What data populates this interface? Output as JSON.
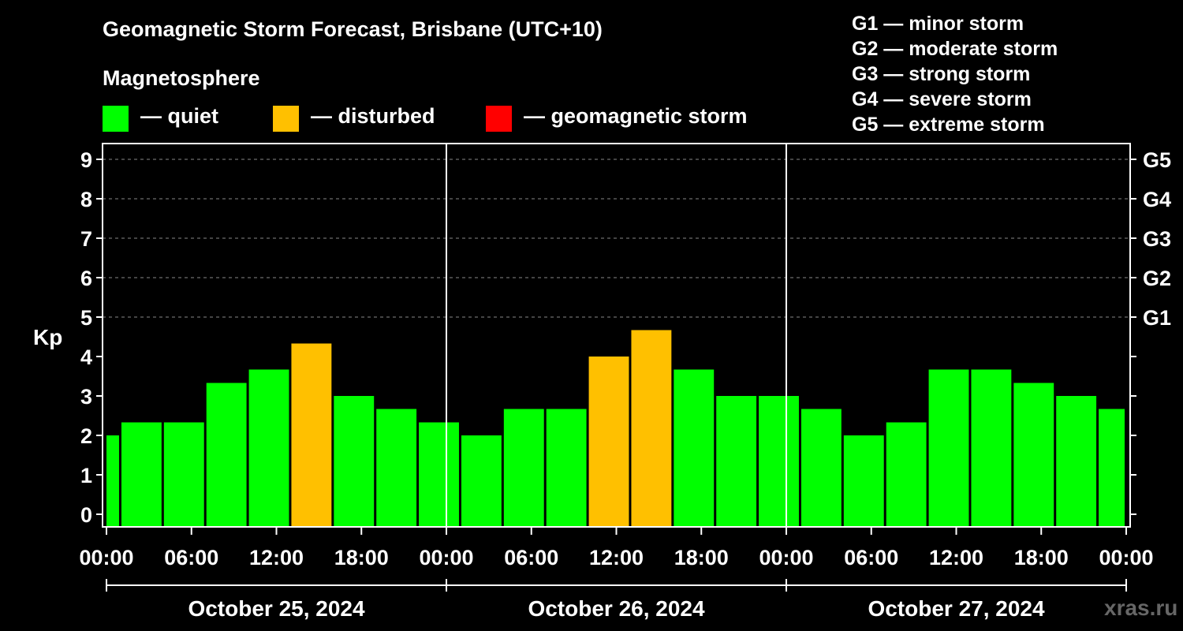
{
  "title": "Geomagnetic Storm Forecast, Brisbane (UTC+10)",
  "magnetosphere_label": "Magnetosphere",
  "legend": [
    {
      "label": "— quiet",
      "color": "#00FF00"
    },
    {
      "label": "— disturbed",
      "color": "#FFC000"
    },
    {
      "label": "— geomagnetic storm",
      "color": "#FF0000"
    }
  ],
  "g_scale": [
    "G1 — minor storm",
    "G2 — moderate storm",
    "G3 — strong storm",
    "G4 — severe storm",
    "G5 — extreme storm"
  ],
  "watermark": "xras.ru",
  "chart_data": {
    "type": "bar",
    "ylabel": "Kp",
    "ylim": [
      0,
      9
    ],
    "yticks": [
      0,
      1,
      2,
      3,
      4,
      5,
      6,
      7,
      8,
      9
    ],
    "right_labels": [
      {
        "kp": 5,
        "label": "G1"
      },
      {
        "kp": 6,
        "label": "G2"
      },
      {
        "kp": 7,
        "label": "G3"
      },
      {
        "kp": 8,
        "label": "G4"
      },
      {
        "kp": 9,
        "label": "G5"
      }
    ],
    "grid_kp": [
      5,
      6,
      7,
      8,
      9
    ],
    "x_start_hour": 0,
    "x_end_hour": 72,
    "x_tick_hours": [
      0,
      6,
      12,
      18,
      24,
      30,
      36,
      42,
      48,
      54,
      60,
      66,
      72
    ],
    "x_tick_labels": [
      "00:00",
      "06:00",
      "12:00",
      "18:00",
      "00:00",
      "06:00",
      "12:00",
      "18:00",
      "00:00",
      "06:00",
      "12:00",
      "18:00",
      "00:00"
    ],
    "days": [
      "October 25, 2024",
      "October 26, 2024",
      "October 27, 2024"
    ],
    "bars": [
      {
        "start": 0,
        "end": 1,
        "kp": 2.0,
        "status": "quiet"
      },
      {
        "start": 1,
        "end": 4,
        "kp": 2.33,
        "status": "quiet"
      },
      {
        "start": 4,
        "end": 7,
        "kp": 2.33,
        "status": "quiet"
      },
      {
        "start": 7,
        "end": 10,
        "kp": 3.33,
        "status": "quiet"
      },
      {
        "start": 10,
        "end": 13,
        "kp": 3.67,
        "status": "quiet"
      },
      {
        "start": 13,
        "end": 16,
        "kp": 4.33,
        "status": "disturbed"
      },
      {
        "start": 16,
        "end": 19,
        "kp": 3.0,
        "status": "quiet"
      },
      {
        "start": 19,
        "end": 22,
        "kp": 2.67,
        "status": "quiet"
      },
      {
        "start": 22,
        "end": 25,
        "kp": 2.33,
        "status": "quiet"
      },
      {
        "start": 25,
        "end": 28,
        "kp": 2.0,
        "status": "quiet"
      },
      {
        "start": 28,
        "end": 31,
        "kp": 2.67,
        "status": "quiet"
      },
      {
        "start": 31,
        "end": 34,
        "kp": 2.67,
        "status": "quiet"
      },
      {
        "start": 34,
        "end": 37,
        "kp": 4.0,
        "status": "disturbed"
      },
      {
        "start": 37,
        "end": 40,
        "kp": 4.67,
        "status": "disturbed"
      },
      {
        "start": 40,
        "end": 43,
        "kp": 3.67,
        "status": "quiet"
      },
      {
        "start": 43,
        "end": 46,
        "kp": 3.0,
        "status": "quiet"
      },
      {
        "start": 46,
        "end": 49,
        "kp": 3.0,
        "status": "quiet"
      },
      {
        "start": 49,
        "end": 52,
        "kp": 2.67,
        "status": "quiet"
      },
      {
        "start": 52,
        "end": 55,
        "kp": 2.0,
        "status": "quiet"
      },
      {
        "start": 55,
        "end": 58,
        "kp": 2.33,
        "status": "quiet"
      },
      {
        "start": 58,
        "end": 61,
        "kp": 3.67,
        "status": "quiet"
      },
      {
        "start": 61,
        "end": 64,
        "kp": 3.67,
        "status": "quiet"
      },
      {
        "start": 64,
        "end": 67,
        "kp": 3.33,
        "status": "quiet"
      },
      {
        "start": 67,
        "end": 70,
        "kp": 3.0,
        "status": "quiet"
      },
      {
        "start": 70,
        "end": 72,
        "kp": 2.67,
        "status": "quiet"
      }
    ],
    "status_colors": {
      "quiet": "#00FF00",
      "disturbed": "#FFC000",
      "storm": "#FF0000"
    }
  }
}
